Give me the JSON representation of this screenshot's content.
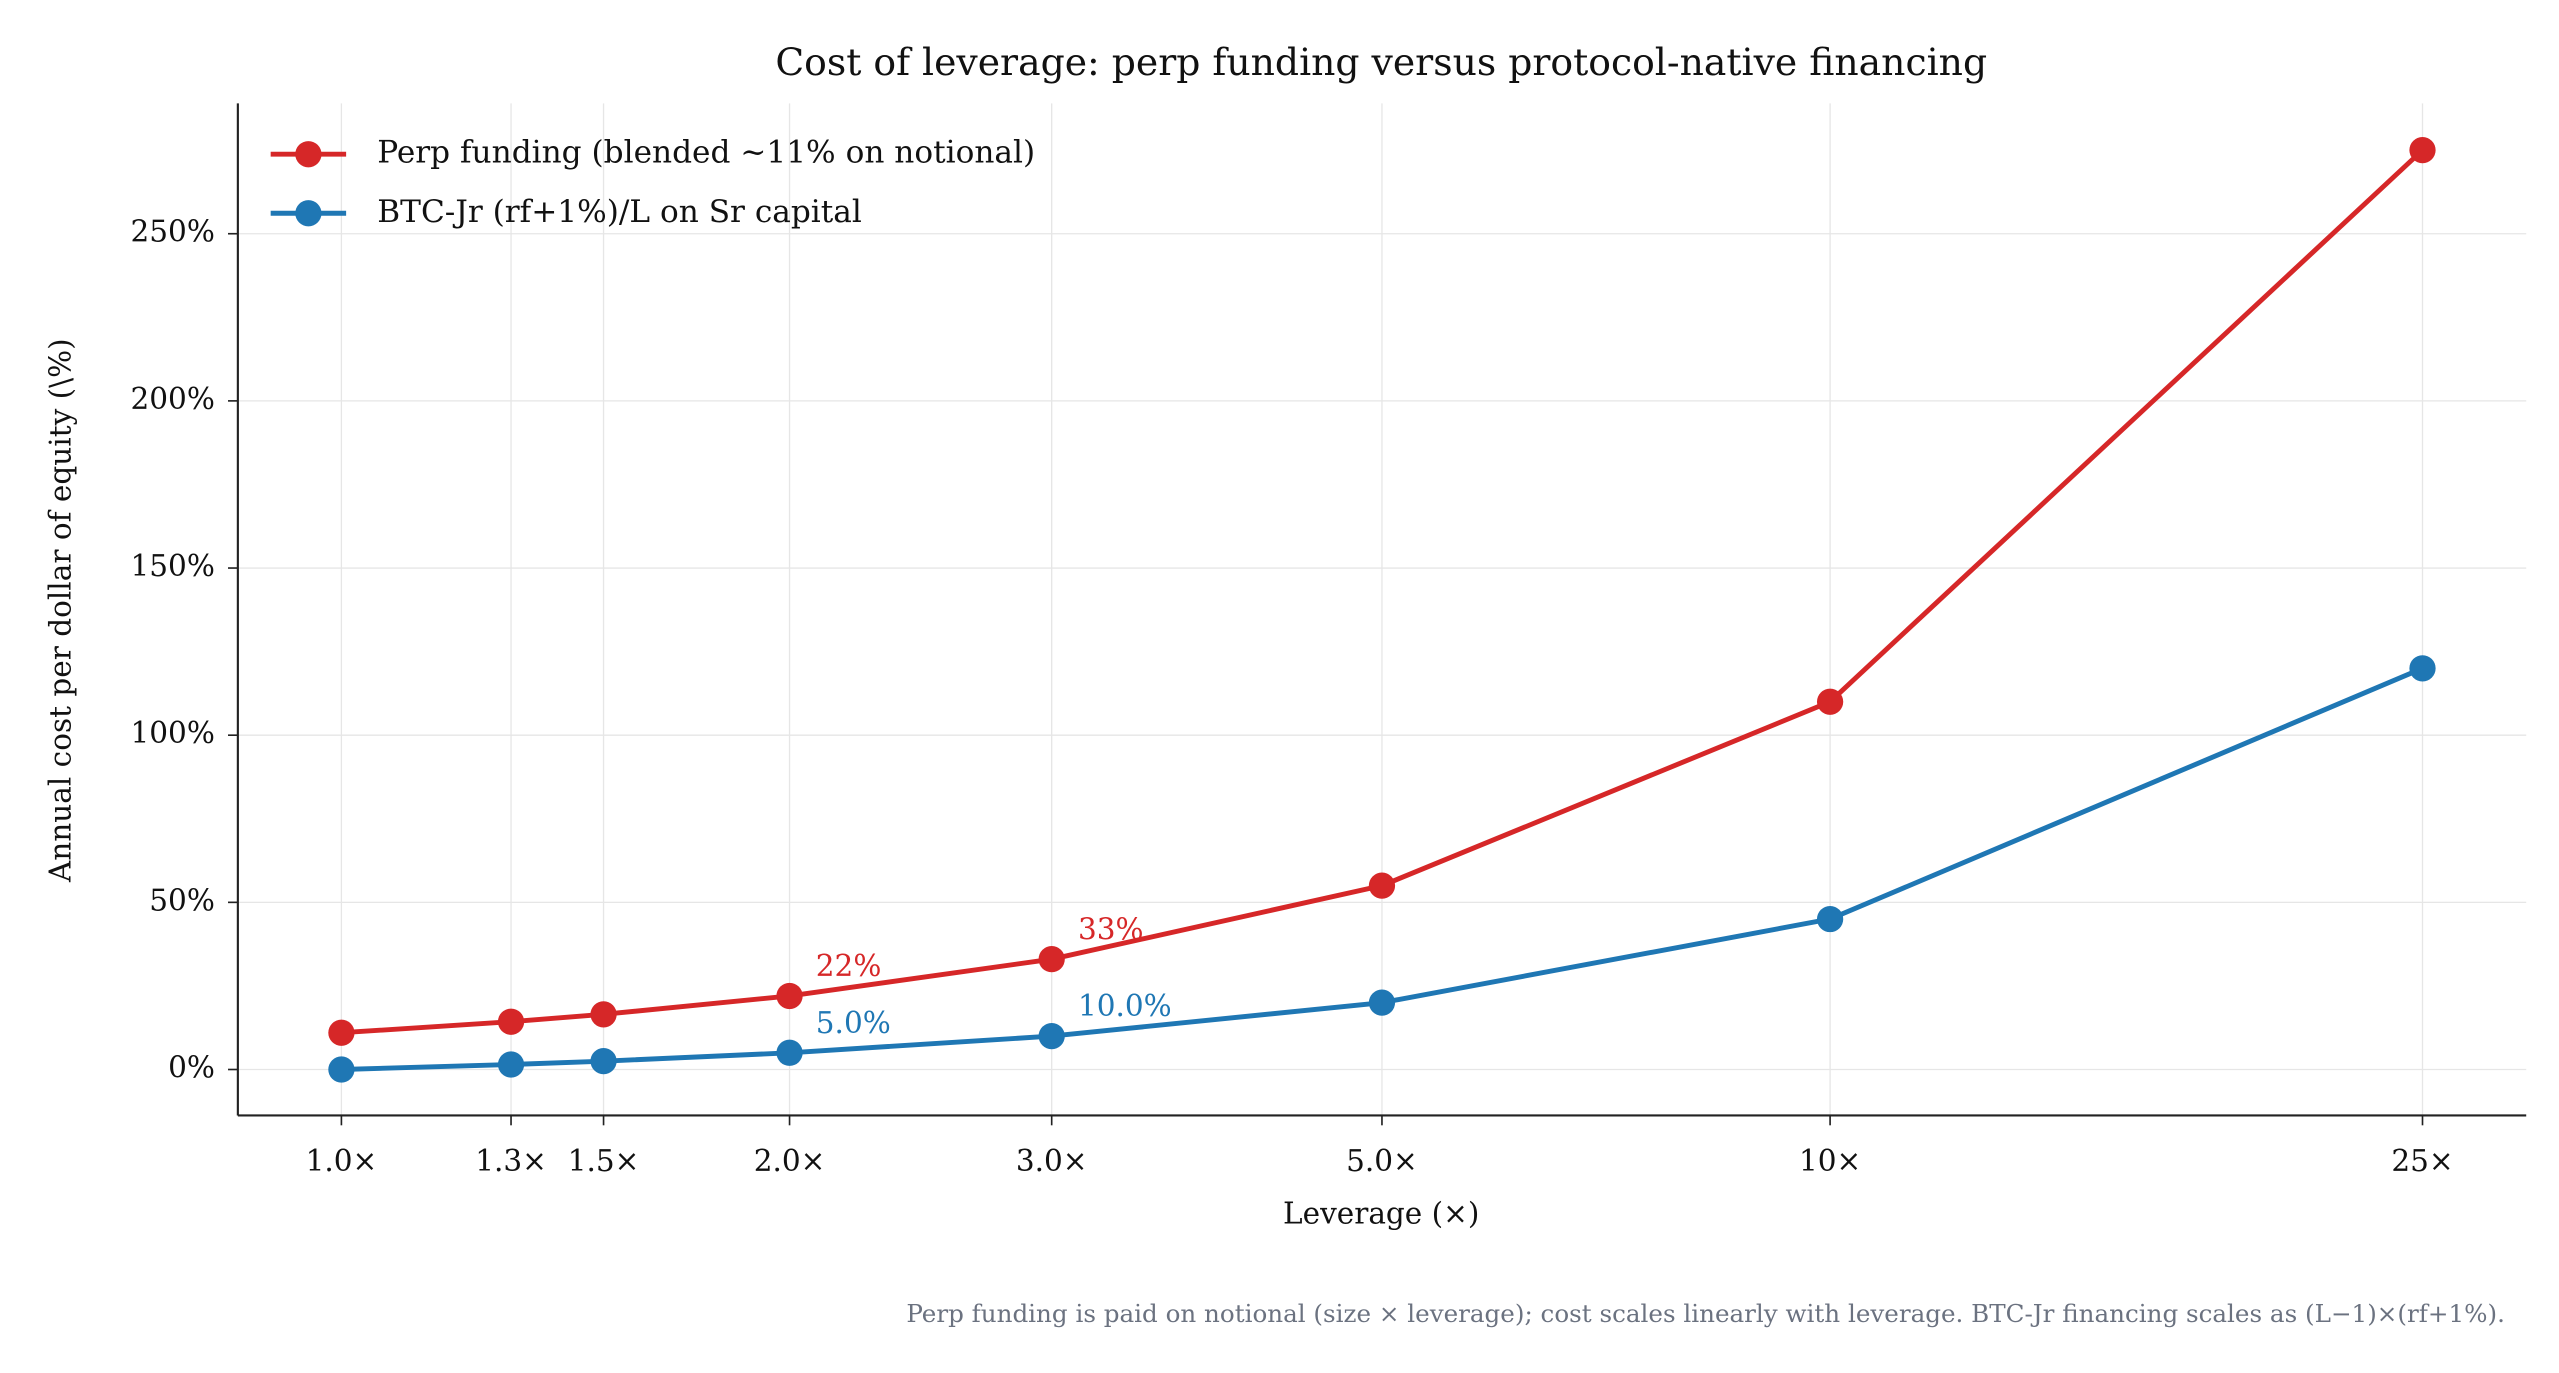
{
  "chart_data": {
    "type": "line",
    "title": "Cost of leverage: perp funding versus protocol-native financing",
    "x_label": "Leverage (×)",
    "y_label": "Annual cost per dollar of equity (\\%)",
    "footnote": "Perp funding is paid on notional (size × leverage); cost scales linearly with leverage. BTC-Jr financing scales as (L−1)×(rf+1%).",
    "x": [
      1,
      1.3,
      1.5,
      2,
      3,
      5,
      10,
      25
    ],
    "x_scale": "log",
    "xlim": [
      0.852,
      29.35
    ],
    "xticks": [
      {
        "value": 1,
        "label": "1.0×"
      },
      {
        "value": 1.3,
        "label": "1.3×"
      },
      {
        "value": 1.5,
        "label": "1.5×"
      },
      {
        "value": 2,
        "label": "2.0×"
      },
      {
        "value": 3,
        "label": "3.0×"
      },
      {
        "value": 5,
        "label": "5.0×"
      },
      {
        "value": 10,
        "label": "10×"
      },
      {
        "value": 25,
        "label": "25×"
      }
    ],
    "ylim": [
      -13.75,
      289
    ],
    "yticks": [
      {
        "value": 0,
        "label": "0%"
      },
      {
        "value": 50,
        "label": "50%"
      },
      {
        "value": 100,
        "label": "100%"
      },
      {
        "value": 150,
        "label": "150%"
      },
      {
        "value": 200,
        "label": "200%"
      },
      {
        "value": 250,
        "label": "250%"
      }
    ],
    "grid": true,
    "legend": "upper left",
    "series": [
      {
        "name": "Perp funding (blended ~11% on notional)",
        "color": "#d62728",
        "values": [
          11,
          14.3,
          16.5,
          22,
          33,
          55,
          110,
          275
        ],
        "value_labels": [
          null,
          null,
          null,
          "22%",
          "33%",
          null,
          null,
          null
        ]
      },
      {
        "name": "BTC-Jr (rf+1%)/L on Sr capital",
        "color": "#1f77b4",
        "values": [
          0,
          1.5,
          2.5,
          5,
          10,
          20,
          45,
          120
        ],
        "value_labels": [
          null,
          null,
          null,
          "5.0%",
          "10.0%",
          null,
          null,
          null
        ]
      }
    ]
  }
}
